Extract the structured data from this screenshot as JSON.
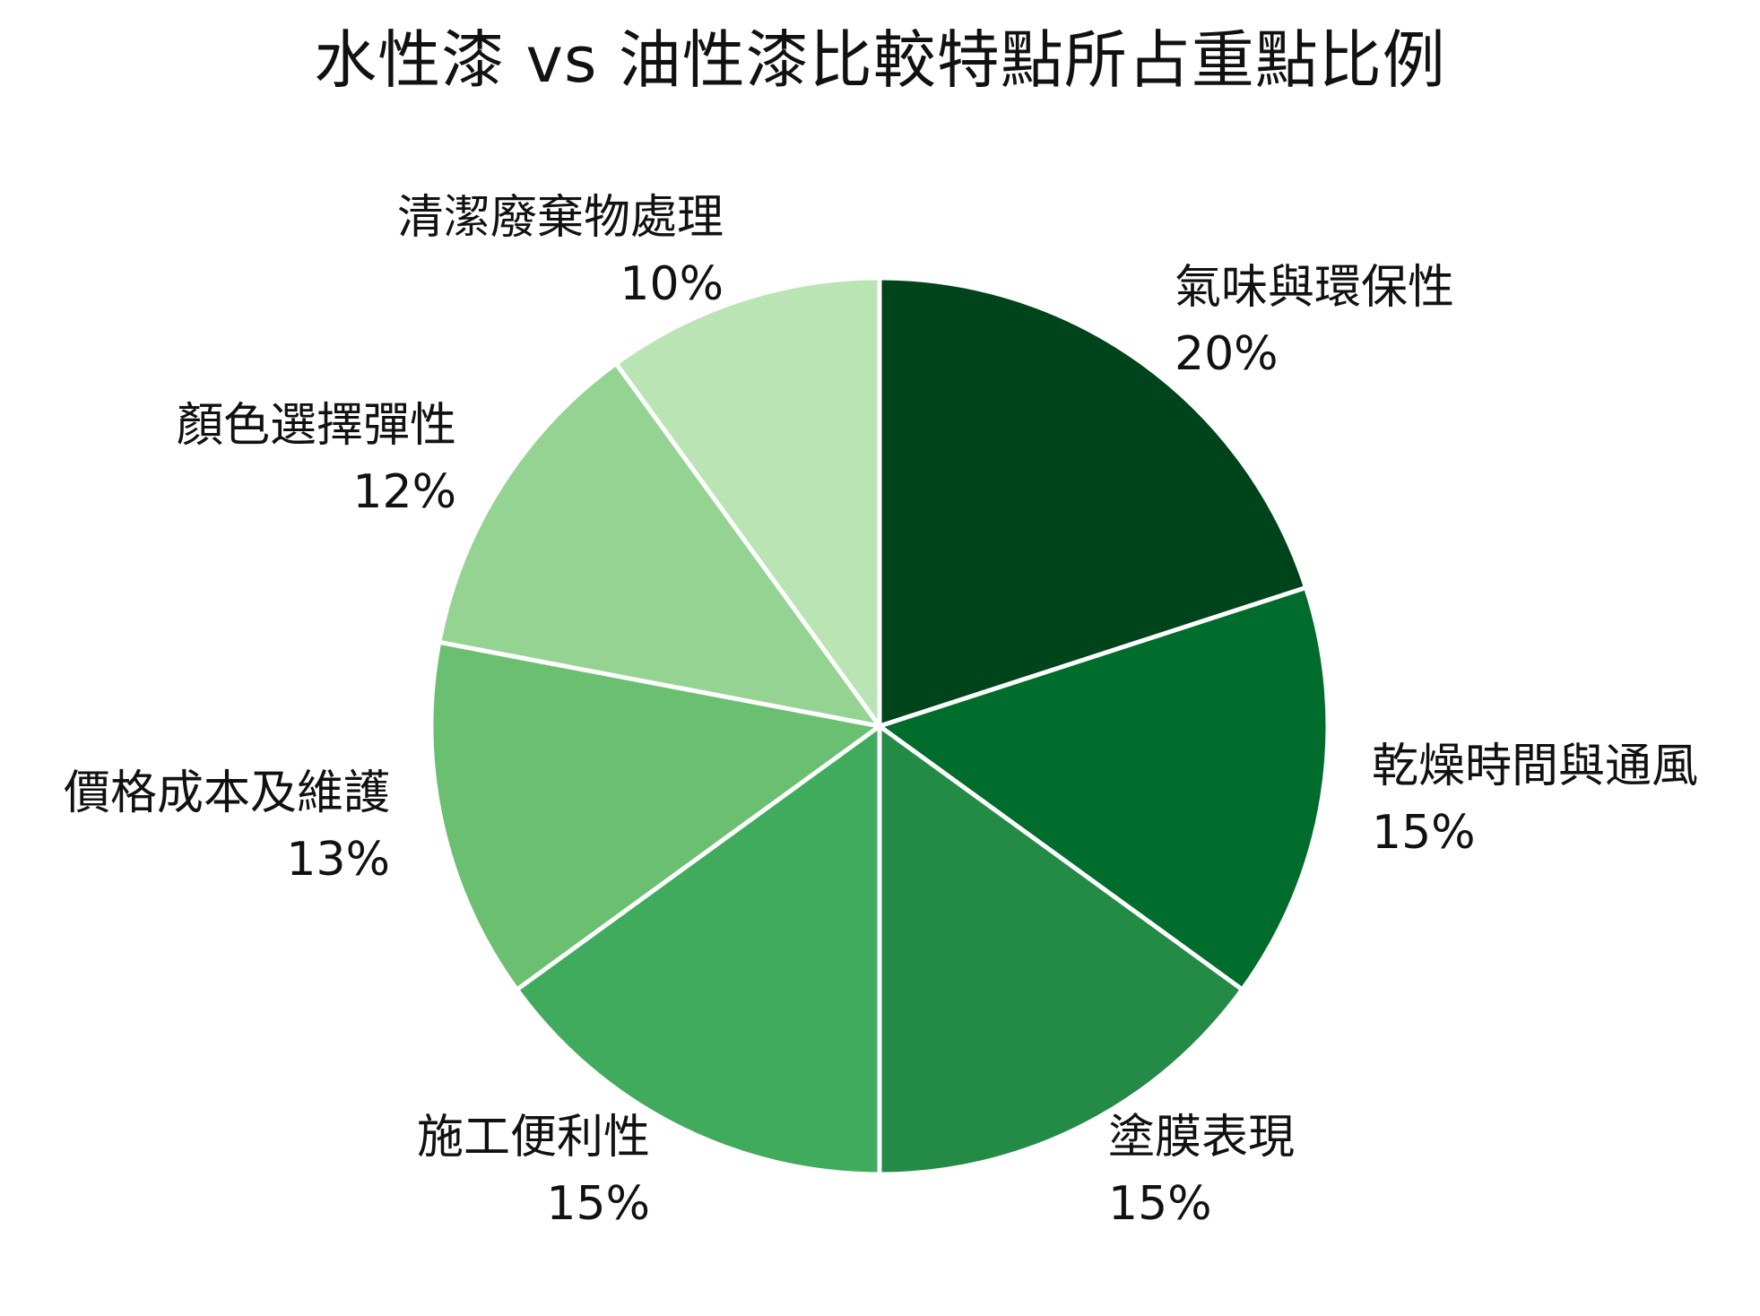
{
  "chart_data": {
    "type": "pie",
    "title": "水性漆 vs 油性漆比較特點所占重點比例",
    "slices": [
      {
        "label": "氣味與環保性",
        "value": 20,
        "value_label": "20%",
        "color": "#00441b"
      },
      {
        "label": "乾燥時間與通風",
        "value": 15,
        "value_label": "15%",
        "color": "#006d2c"
      },
      {
        "label": "塗膜表現",
        "value": 15,
        "value_label": "15%",
        "color": "#238b45"
      },
      {
        "label": "施工便利性",
        "value": 15,
        "value_label": "15%",
        "color": "#41ab5d"
      },
      {
        "label": "價格成本及維護",
        "value": 13,
        "value_label": "13%",
        "color": "#6abf71"
      },
      {
        "label": "顏色選擇彈性",
        "value": 12,
        "value_label": "12%",
        "color": "#94d392"
      },
      {
        "label": "清潔廢棄物處理",
        "value": 10,
        "value_label": "10%",
        "color": "#bae4b3"
      }
    ],
    "start_angle": "12 o'clock",
    "direction": "clockwise",
    "legend": "none",
    "slice_border_color": "#ffffff"
  }
}
